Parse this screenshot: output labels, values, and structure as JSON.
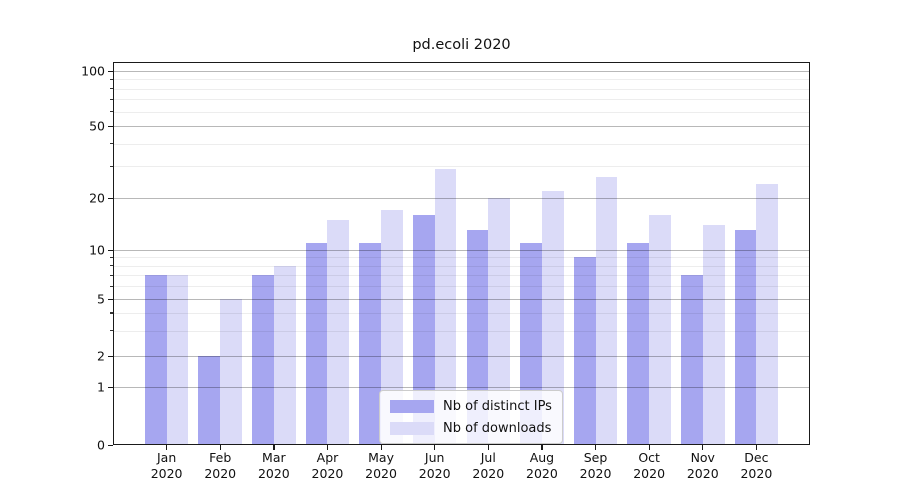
{
  "chart_data": {
    "type": "bar",
    "title": "pd.ecoli 2020",
    "categories": [
      "Jan",
      "Feb",
      "Mar",
      "Apr",
      "May",
      "Jun",
      "Jul",
      "Aug",
      "Sep",
      "Oct",
      "Nov",
      "Dec"
    ],
    "year_label": "2020",
    "series": [
      {
        "name": "Nb of distinct IPs",
        "color": "#a6a6f0",
        "values": [
          7,
          2,
          7,
          11,
          11,
          16,
          13,
          11,
          9,
          11,
          7,
          13
        ]
      },
      {
        "name": "Nb of downloads",
        "color": "#dbdbf8",
        "values": [
          7,
          5,
          8,
          15,
          17,
          29,
          20,
          22,
          26,
          16,
          14,
          24
        ]
      }
    ],
    "xlabel": "",
    "ylabel": "",
    "yscale": "log-like",
    "yticks": [
      0,
      1,
      2,
      5,
      10,
      20,
      50,
      100
    ],
    "minor_yticks": [
      3,
      4,
      6,
      7,
      8,
      9,
      30,
      40,
      60,
      70,
      80,
      90
    ],
    "ylim": [
      0,
      112
    ],
    "grid": "on",
    "legend_position": "lower-center"
  },
  "colors": {
    "series_ips": "#a6a6f0",
    "series_downloads": "#dbdbf8",
    "grid_major": "#b3b3b3",
    "grid_minor": "#ededed",
    "axis": "#1a1a1a",
    "background": "#ffffff"
  }
}
